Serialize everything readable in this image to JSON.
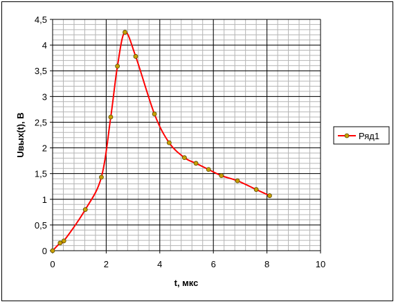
{
  "chart_data": {
    "type": "line",
    "title": "",
    "xlabel": "t, мкс",
    "ylabel": "Uвых(t), В",
    "xlim": [
      0,
      10
    ],
    "ylim": [
      0,
      4.5
    ],
    "x_ticks": [
      "0",
      "2",
      "4",
      "6",
      "8",
      "10"
    ],
    "y_ticks": [
      "0",
      "0,5",
      "1",
      "1,5",
      "2",
      "2,5",
      "3",
      "3,5",
      "4",
      "4,5"
    ],
    "grid": true,
    "legend_position": "right",
    "series": [
      {
        "name": "Ряд1",
        "color": "#ff0000",
        "marker_color": "#c9a000",
        "x": [
          0,
          0.28,
          0.42,
          1.22,
          1.82,
          2.17,
          2.42,
          2.7,
          3.1,
          3.8,
          4.35,
          4.92,
          5.35,
          5.82,
          6.3,
          6.9,
          7.6,
          8.1
        ],
        "y": [
          0,
          0.15,
          0.19,
          0.8,
          1.43,
          2.6,
          3.59,
          4.25,
          3.78,
          2.66,
          2.1,
          1.81,
          1.7,
          1.58,
          1.46,
          1.36,
          1.19,
          1.07
        ]
      }
    ]
  }
}
